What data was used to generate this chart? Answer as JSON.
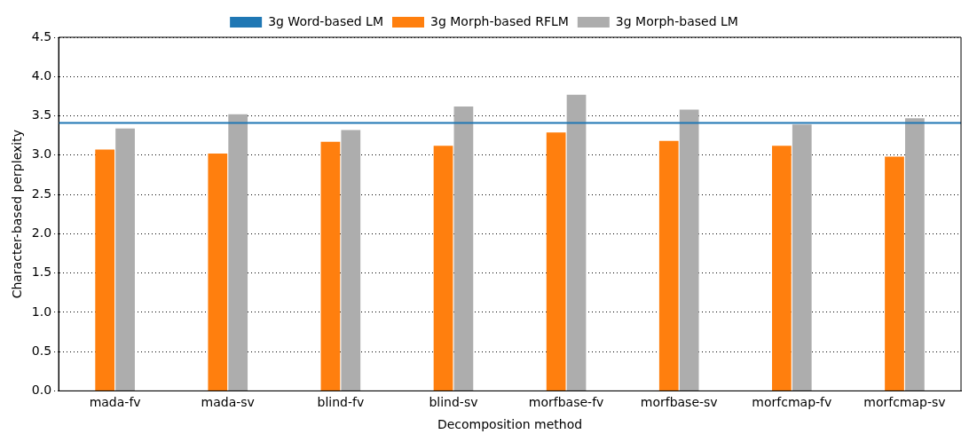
{
  "chart_data": {
    "type": "bar",
    "xlabel": "Decomposition method",
    "ylabel": "Character-based perplexity",
    "categories": [
      "mada-fv",
      "mada-sv",
      "blind-fv",
      "blind-sv",
      "morfbase-fv",
      "morfbase-sv",
      "morfcmap-fv",
      "morfcmap-sv"
    ],
    "series": [
      {
        "name": "3g Morph-based RFLM",
        "color": "#ff7f0e",
        "values": [
          3.07,
          3.02,
          3.17,
          3.12,
          3.29,
          3.18,
          3.12,
          2.98
        ]
      },
      {
        "name": "3g Morph-based LM",
        "color": "#adadad",
        "values": [
          3.34,
          3.52,
          3.32,
          3.62,
          3.77,
          3.58,
          3.39,
          3.47
        ]
      }
    ],
    "ref_lines": [
      {
        "axis": "y",
        "value": 3.41,
        "label": "3g Word-based LM",
        "color": "#1f77b4"
      }
    ],
    "ylim": [
      0,
      4.5
    ],
    "yticks": [
      {
        "value": 0,
        "label": "0.0"
      },
      {
        "value": 0.5,
        "label": "0.5"
      },
      {
        "value": 1,
        "label": "1.0"
      },
      {
        "value": 1.5,
        "label": "1.5"
      },
      {
        "value": 2,
        "label": "2.0"
      },
      {
        "value": 2.5,
        "label": "2.5"
      },
      {
        "value": 3,
        "label": "3.0"
      },
      {
        "value": 3.5,
        "label": "3.5"
      },
      {
        "value": 4,
        "label": "4.0"
      },
      {
        "value": 4.5,
        "label": "4.5"
      }
    ],
    "grid": "y",
    "legend": "top"
  }
}
